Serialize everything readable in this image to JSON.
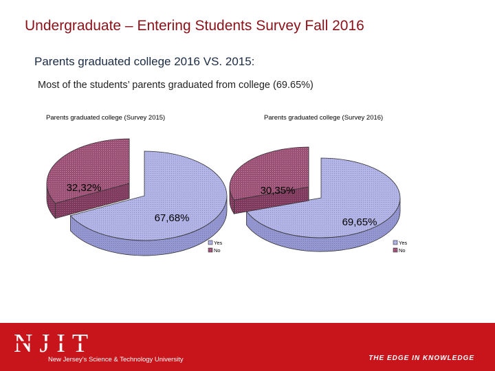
{
  "slide": {
    "title": "Undergraduate – Entering Students Survey Fall 2016",
    "subtitle": "Parents graduated college 2016 VS. 2015:",
    "body": "Most of the students’ parents graduated from college (69.65%)"
  },
  "footer": {
    "logo_text": "NJIT",
    "university": "New Jersey’s Science & Technology University",
    "tagline": "THE EDGE IN KNOWLEDGE"
  },
  "colors": {
    "yes": "#b3b5e6",
    "no": "#9a4f74",
    "footer": "#c8141b",
    "title": "#8b1018"
  },
  "chart_data": [
    {
      "type": "pie",
      "title": "Parents graduated college (Survey 2015)",
      "categories": [
        "Yes",
        "No"
      ],
      "values": [
        67.68,
        32.32
      ],
      "labels": [
        "67,68%",
        "32,32%"
      ],
      "legend": [
        "Yes",
        "No"
      ],
      "legend_placement": "bottom-right"
    },
    {
      "type": "pie",
      "title": "Parents graduated college (Survey 2016)",
      "categories": [
        "Yes",
        "No"
      ],
      "values": [
        69.65,
        30.35
      ],
      "labels": [
        "69,65%",
        "30,35%"
      ],
      "legend": [
        "Yes",
        "No"
      ],
      "legend_placement": "bottom-right"
    }
  ]
}
